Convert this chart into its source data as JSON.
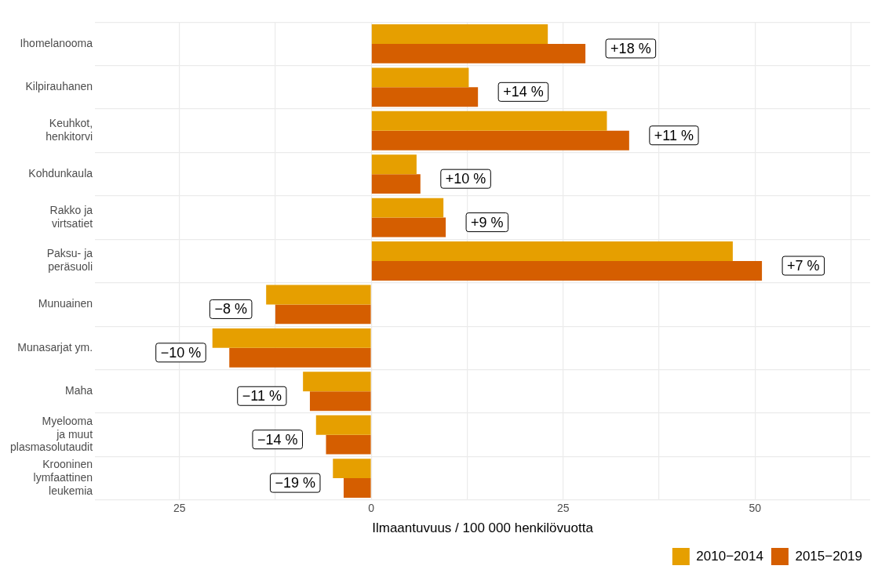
{
  "chart_data": {
    "type": "bar",
    "orientation": "horizontal",
    "xlabel": "Ilmaantuvuus / 100 000 henkilövuotta",
    "categories": [
      "Ihomelanooma",
      "Kilpirauhanen",
      "Keuhkot,\nhenkitorvi",
      "Kohdunkaula",
      "Rakko ja\nvirtsatiet",
      "Paksu- ja\nperäsuoli",
      "Munuainen",
      "Munasarjat ym.",
      "Maha",
      "Myelooma\nja muut\nplasmasolutaudit",
      "Krooninen\nlymfaattinen\nleukemia"
    ],
    "series": [
      {
        "name": "2010−2014",
        "color": "#e69f00",
        "values": [
          23.0,
          12.7,
          30.7,
          5.9,
          9.4,
          47.1,
          -13.7,
          -20.7,
          -8.9,
          -7.2,
          -5.0
        ]
      },
      {
        "name": "2015−2019",
        "color": "#d55e00",
        "values": [
          27.9,
          13.9,
          33.6,
          6.4,
          9.7,
          50.9,
          -12.5,
          -18.5,
          -8.0,
          -5.9,
          -3.6
        ]
      }
    ],
    "annotations": [
      {
        "text": "+18 %",
        "x": 27.9,
        "y": "Ihomelanooma"
      },
      {
        "text": "+14 %",
        "x": 13.9,
        "y": "Kilpirauhanen"
      },
      {
        "text": "+11 %",
        "x": 33.6,
        "y": "Keuhkot,\nhenkitorvi"
      },
      {
        "text": "+10 %",
        "x": 6.4,
        "y": "Kohdunkaula"
      },
      {
        "text": "+9 %",
        "x": 9.7,
        "y": "Rakko ja\nvirtsatiet"
      },
      {
        "text": "+7 %",
        "x": 50.9,
        "y": "Paksu- ja\nperäsuoli"
      },
      {
        "text": "−8 %",
        "x": -12.5,
        "y": "Munuainen"
      },
      {
        "text": "−10 %",
        "x": -18.5,
        "y": "Munasarjat ym."
      },
      {
        "text": "−11 %",
        "x": -8.0,
        "y": "Maha"
      },
      {
        "text": "−14 %",
        "x": -5.9,
        "y": "Myelooma\nja muut\nplasmasolutaudit"
      },
      {
        "text": "−19 %",
        "x": -3.6,
        "y": "Krooninen\nlymfaattinen\nleukemia"
      }
    ],
    "xlim": [
      -36,
      65
    ],
    "xticks": [
      {
        "value": -25,
        "label": "25"
      },
      {
        "value": -12.5,
        "label": null
      },
      0,
      {
        "value": 12.5,
        "label": null
      },
      25,
      {
        "value": 37.5,
        "label": null
      },
      50,
      {
        "value": 62.5,
        "label": null
      }
    ],
    "grid": true,
    "legend": "bottom right"
  }
}
